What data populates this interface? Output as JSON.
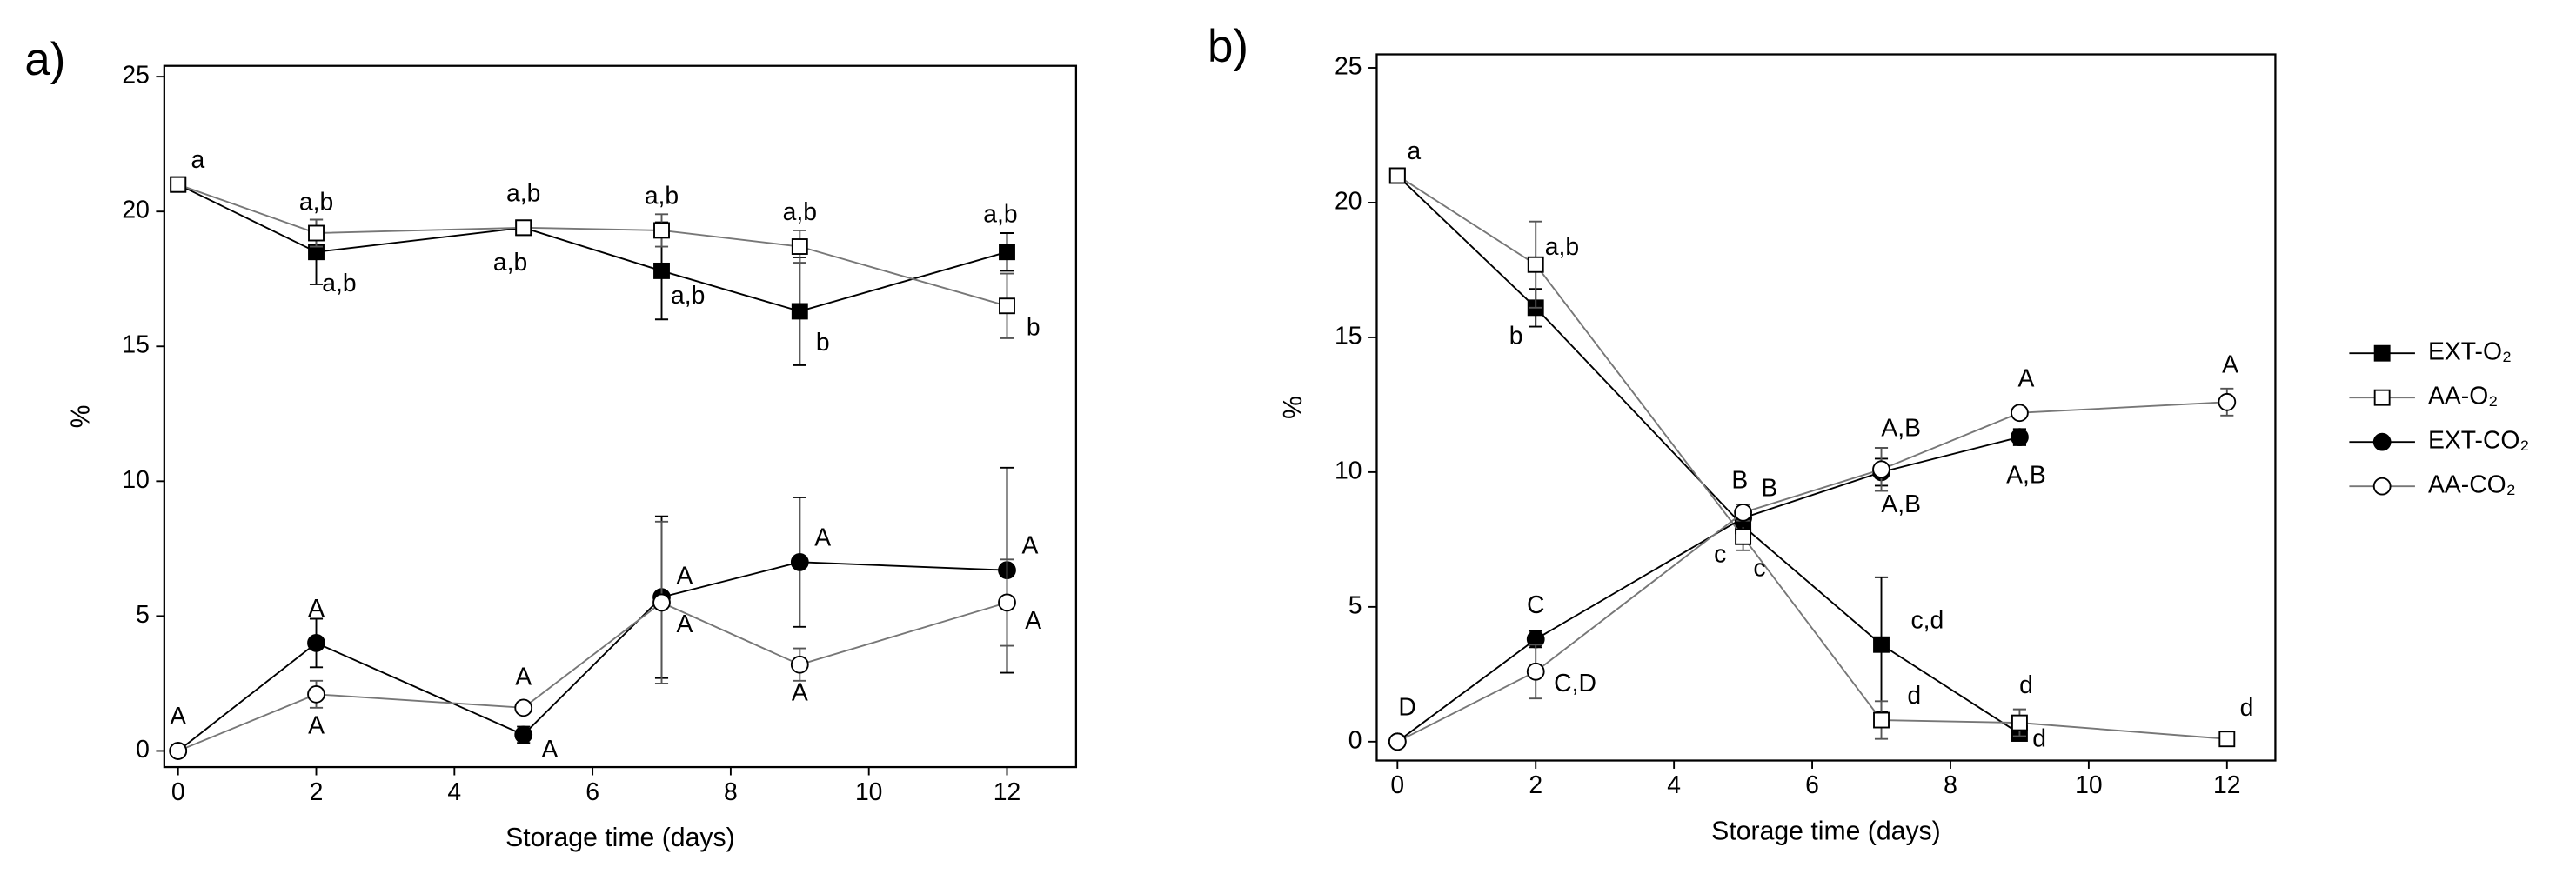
{
  "chart_data": [
    {
      "type": "line",
      "title": "a)",
      "xlabel": "Storage time (days)",
      "ylabel": "%",
      "xlim": [
        -0.2,
        13
      ],
      "ylim": [
        -0.6,
        25.4
      ],
      "xticks": [
        0,
        2,
        4,
        6,
        8,
        10,
        12
      ],
      "yticks": [
        0,
        5,
        10,
        15,
        20,
        25
      ],
      "series": [
        {
          "color": "#000000",
          "marker": "square",
          "filled": true,
          "x": [
            0,
            2,
            5,
            7,
            9,
            12
          ],
          "values": [
            21,
            18.5,
            19.4,
            17.8,
            16.3,
            18.5
          ],
          "errors": [
            0,
            1.2,
            0.2,
            1.8,
            2,
            0.7
          ],
          "letters": [
            "a",
            "a,b",
            "a,b",
            "a,b",
            "b",
            "a,b"
          ]
        },
        {
          "color": "#777777",
          "marker": "square",
          "filled": false,
          "x": [
            0,
            2,
            5,
            7,
            9,
            12
          ],
          "values": [
            21,
            19.2,
            19.4,
            19.3,
            18.7,
            16.5
          ],
          "errors": [
            0,
            0.5,
            0.2,
            0.6,
            0.6,
            1.2
          ],
          "letters": [
            null,
            "a,b",
            "a,b",
            "a,b",
            "a,b",
            "b"
          ]
        },
        {
          "color": "#000000",
          "marker": "circle",
          "filled": true,
          "x": [
            0,
            2,
            5,
            7,
            9,
            12
          ],
          "values": [
            0,
            4,
            0.6,
            5.7,
            7,
            6.7
          ],
          "errors": [
            0,
            0.9,
            0.3,
            3,
            2.4,
            3.8
          ],
          "letters": [
            "A",
            "A",
            "A",
            "A",
            "A",
            "A"
          ]
        },
        {
          "color": "#777777",
          "marker": "circle",
          "filled": false,
          "x": [
            0,
            2,
            5,
            7,
            9,
            12
          ],
          "values": [
            0,
            2.1,
            1.6,
            5.5,
            3.2,
            5.5
          ],
          "errors": [
            0,
            0.5,
            0.2,
            3,
            0.6,
            1.6
          ],
          "letters": [
            null,
            "A",
            "A",
            "A",
            "A",
            "A"
          ]
        }
      ]
    },
    {
      "type": "line",
      "title": "b)",
      "xlabel": "Storage time (days)",
      "ylabel": "%",
      "xlim": [
        -0.3,
        12.7
      ],
      "ylim": [
        -0.7,
        25.5
      ],
      "xticks": [
        0,
        2,
        4,
        6,
        8,
        10,
        12
      ],
      "yticks": [
        0,
        5,
        10,
        15,
        20,
        25
      ],
      "legend": "right-outside",
      "series": [
        {
          "name": "EXT-O₂",
          "color": "#000000",
          "marker": "square",
          "filled": true,
          "x": [
            0,
            2,
            5,
            7,
            9
          ],
          "values": [
            21,
            16.1,
            8.0,
            3.6,
            0.3
          ],
          "errors": [
            0,
            0.7,
            0.3,
            2.5,
            0.1
          ],
          "letters": [
            "a",
            "b",
            "c",
            "c,d",
            "d"
          ]
        },
        {
          "name": "AA-O₂",
          "color": "#777777",
          "marker": "square",
          "filled": false,
          "x": [
            0,
            2,
            5,
            7,
            9,
            12
          ],
          "values": [
            21,
            17.7,
            7.6,
            0.8,
            0.7,
            0.1
          ],
          "errors": [
            0,
            1.6,
            0.5,
            0.7,
            0.5,
            0.1
          ],
          "letters": [
            null,
            "a,b",
            "c",
            "d",
            "d",
            "d"
          ]
        },
        {
          "name": "EXT-CO₂",
          "color": "#000000",
          "marker": "circle",
          "filled": true,
          "x": [
            0,
            2,
            5,
            7,
            9
          ],
          "values": [
            0,
            3.8,
            8.3,
            10.0,
            11.3
          ],
          "errors": [
            0,
            0.3,
            0.3,
            0.5,
            0.3
          ],
          "letters": [
            "D",
            "C",
            "B",
            "A,B",
            "A,B"
          ]
        },
        {
          "name": "AA-CO₂",
          "color": "#777777",
          "marker": "circle",
          "filled": false,
          "x": [
            0,
            2,
            5,
            7,
            9,
            12
          ],
          "values": [
            0,
            2.6,
            8.5,
            10.1,
            12.2,
            12.6
          ],
          "errors": [
            0,
            1.0,
            0.3,
            0.8,
            0.2,
            0.5
          ],
          "letters": [
            null,
            "C,D",
            "B",
            "A,B",
            "A",
            "A"
          ]
        }
      ]
    }
  ]
}
